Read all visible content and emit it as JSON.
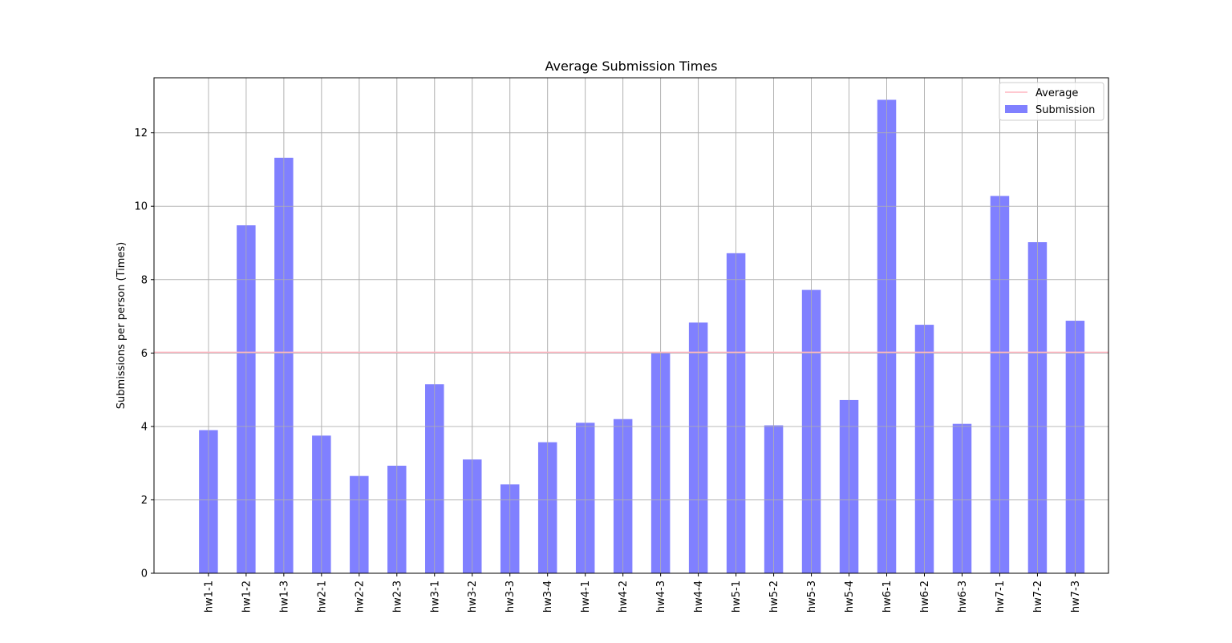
{
  "chart_data": {
    "type": "bar",
    "title": "Average Submission Times",
    "xlabel": "",
    "ylabel": "Submissions per person (Times)",
    "categories": [
      "hw1-1",
      "hw1-2",
      "hw1-3",
      "hw2-1",
      "hw2-2",
      "hw2-3",
      "hw3-1",
      "hw3-2",
      "hw3-3",
      "hw3-4",
      "hw4-1",
      "hw4-2",
      "hw4-3",
      "hw4-4",
      "hw5-1",
      "hw5-2",
      "hw5-3",
      "hw5-4",
      "hw6-1",
      "hw6-2",
      "hw6-3",
      "hw7-1",
      "hw7-2",
      "hw7-3"
    ],
    "series": [
      {
        "name": "Submission",
        "color": "#8080ff",
        "values": [
          3.9,
          9.48,
          11.32,
          3.75,
          2.65,
          2.93,
          5.15,
          3.1,
          2.42,
          3.57,
          4.1,
          4.2,
          6.0,
          6.83,
          8.72,
          4.03,
          7.72,
          4.72,
          12.9,
          6.77,
          4.07,
          10.28,
          9.02,
          6.88
        ]
      }
    ],
    "average": {
      "name": "Average",
      "value": 6.02,
      "color": "#ffb6c1"
    },
    "ylim": [
      0,
      13.5
    ],
    "yticks": [
      0,
      2,
      4,
      6,
      8,
      10,
      12
    ],
    "grid": true,
    "legend_position": "top-right"
  }
}
